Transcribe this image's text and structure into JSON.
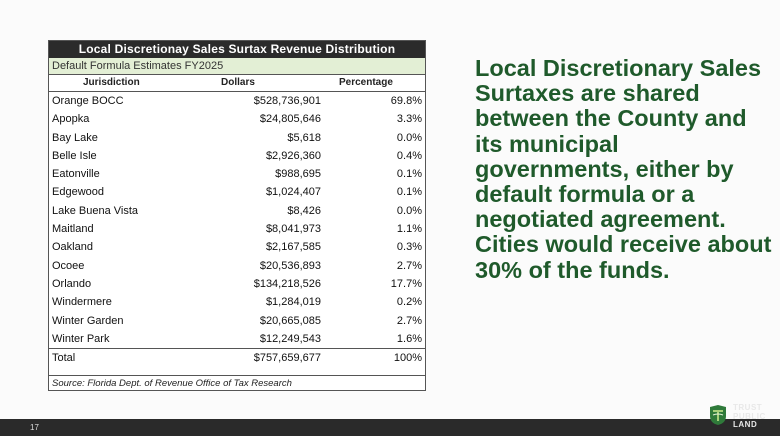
{
  "table": {
    "title": "Local Discretionay Sales Surtax Revenue Distribution",
    "subtitle": "Default Formula Estimates FY2025",
    "headers": {
      "jurisdiction": "Jurisdiction",
      "dollars": "Dollars",
      "percentage": "Percentage"
    },
    "rows": [
      {
        "jurisdiction": "Orange BOCC",
        "dollars": "$528,736,901",
        "percentage": "69.8%"
      },
      {
        "jurisdiction": "Apopka",
        "dollars": "$24,805,646",
        "percentage": "3.3%"
      },
      {
        "jurisdiction": "Bay Lake",
        "dollars": "$5,618",
        "percentage": "0.0%"
      },
      {
        "jurisdiction": "Belle Isle",
        "dollars": "$2,926,360",
        "percentage": "0.4%"
      },
      {
        "jurisdiction": "Eatonville",
        "dollars": "$988,695",
        "percentage": "0.1%"
      },
      {
        "jurisdiction": "Edgewood",
        "dollars": "$1,024,407",
        "percentage": "0.1%"
      },
      {
        "jurisdiction": "Lake Buena Vista",
        "dollars": "$8,426",
        "percentage": "0.0%"
      },
      {
        "jurisdiction": "Maitland",
        "dollars": "$8,041,973",
        "percentage": "1.1%"
      },
      {
        "jurisdiction": "Oakland",
        "dollars": "$2,167,585",
        "percentage": "0.3%"
      },
      {
        "jurisdiction": "Ocoee",
        "dollars": "$20,536,893",
        "percentage": "2.7%"
      },
      {
        "jurisdiction": "Orlando",
        "dollars": "$134,218,526",
        "percentage": "17.7%"
      },
      {
        "jurisdiction": "Windermere",
        "dollars": "$1,284,019",
        "percentage": "0.2%"
      },
      {
        "jurisdiction": "Winter Garden",
        "dollars": "$20,665,085",
        "percentage": "2.7%"
      },
      {
        "jurisdiction": "Winter Park",
        "dollars": "$12,249,543",
        "percentage": "1.6%"
      }
    ],
    "total": {
      "jurisdiction": "Total",
      "dollars": "$757,659,677",
      "percentage": "100%"
    },
    "source": "Source: Florida Dept. of Revenue Office of Tax Research"
  },
  "body_text": "Local Discretionary Sales Surtaxes are shared between the County and its municipal governments, either by default formula or a negotiated agreement. Cities would receive about 30% of the funds.",
  "footer": {
    "page_number": "17",
    "logo_text": [
      "TRUST",
      "PUBLIC",
      "LAND"
    ]
  },
  "colors": {
    "accent_green": "#1f5a2b",
    "subtitle_bg": "#e3efd5",
    "title_bg": "#2b2b2b",
    "footer_bg": "#2a2a2a"
  },
  "icons": {
    "logo": "trust-for-public-land-logo-icon"
  }
}
